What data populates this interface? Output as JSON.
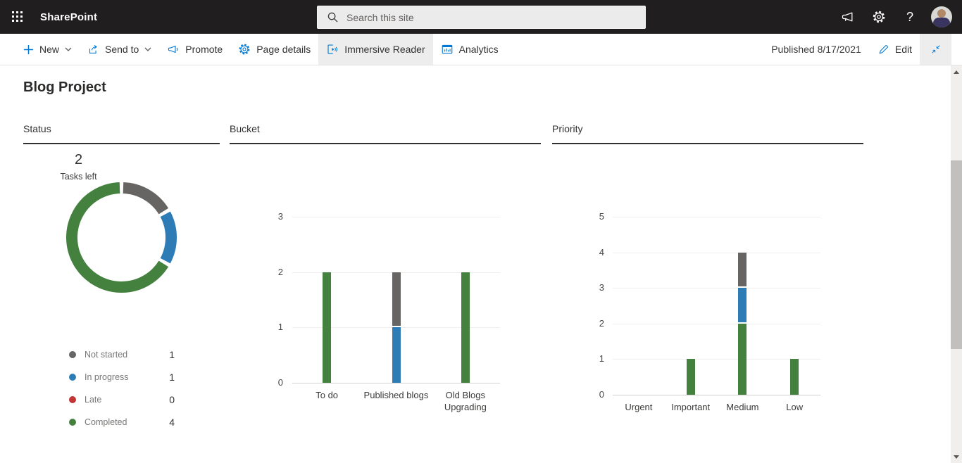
{
  "colors": {
    "accent_blue": "#0078d4",
    "completed_green": "#44813f",
    "in_progress_blue": "#2e7cb5",
    "not_started_gray": "#666563",
    "late_red": "#c13535",
    "suite_bar_bg": "#201e1e"
  },
  "suite_bar": {
    "app_name": "SharePoint",
    "search_placeholder": "Search this site",
    "icons": [
      "app-launcher",
      "megaphone",
      "settings",
      "help",
      "account-avatar"
    ],
    "help_glyph": "?"
  },
  "toolbar": {
    "items": [
      {
        "label": "New",
        "icon": "plus",
        "dropdown": true
      },
      {
        "label": "Send to",
        "icon": "share",
        "dropdown": true
      },
      {
        "label": "Promote",
        "icon": "megaphone",
        "dropdown": false
      },
      {
        "label": "Page details",
        "icon": "gear",
        "dropdown": false
      },
      {
        "label": "Immersive Reader",
        "icon": "immersive-reader",
        "dropdown": false,
        "active": true
      },
      {
        "label": "Analytics",
        "icon": "analytics",
        "dropdown": false
      }
    ],
    "published_text": "Published 8/17/2021",
    "edit_label": "Edit"
  },
  "page": {
    "title": "Blog Project"
  },
  "sections": [
    {
      "title": "Status"
    },
    {
      "title": "Bucket"
    },
    {
      "title": "Priority"
    }
  ],
  "chart_data": [
    {
      "type": "pie",
      "subtype": "donut",
      "title": "Status",
      "center_value": "2",
      "center_label": "Tasks left",
      "total_tasks": 6,
      "legend_position": "below",
      "series": [
        {
          "name": "Not started",
          "value": 1,
          "color": "#666563"
        },
        {
          "name": "In progress",
          "value": 1,
          "color": "#2e7cb5"
        },
        {
          "name": "Late",
          "value": 0,
          "color": "#c13535"
        },
        {
          "name": "Completed",
          "value": 4,
          "color": "#44813f"
        }
      ]
    },
    {
      "type": "bar",
      "title": "Bucket",
      "stacked": true,
      "grid": true,
      "categories": [
        "To do",
        "Published blogs",
        "Old Blogs Upgrading"
      ],
      "ylim": [
        0,
        3
      ],
      "yticks": [
        0,
        1,
        2,
        3
      ],
      "xlabel": "",
      "ylabel": "",
      "series": [
        {
          "name": "Completed",
          "color": "#44813f",
          "values": [
            2,
            0,
            2
          ]
        },
        {
          "name": "In progress",
          "color": "#2e7cb5",
          "values": [
            0,
            1,
            0
          ]
        },
        {
          "name": "Not started",
          "color": "#666563",
          "values": [
            0,
            1,
            0
          ]
        }
      ]
    },
    {
      "type": "bar",
      "title": "Priority",
      "stacked": true,
      "grid": true,
      "categories": [
        "Urgent",
        "Important",
        "Medium",
        "Low"
      ],
      "ylim": [
        0,
        5
      ],
      "yticks": [
        0,
        1,
        2,
        3,
        4,
        5
      ],
      "xlabel": "",
      "ylabel": "",
      "series": [
        {
          "name": "Completed",
          "color": "#44813f",
          "values": [
            0,
            1,
            2,
            1
          ]
        },
        {
          "name": "In progress",
          "color": "#2e7cb5",
          "values": [
            0,
            0,
            1,
            0
          ]
        },
        {
          "name": "Not started",
          "color": "#666563",
          "values": [
            0,
            0,
            1,
            0
          ]
        }
      ]
    }
  ]
}
